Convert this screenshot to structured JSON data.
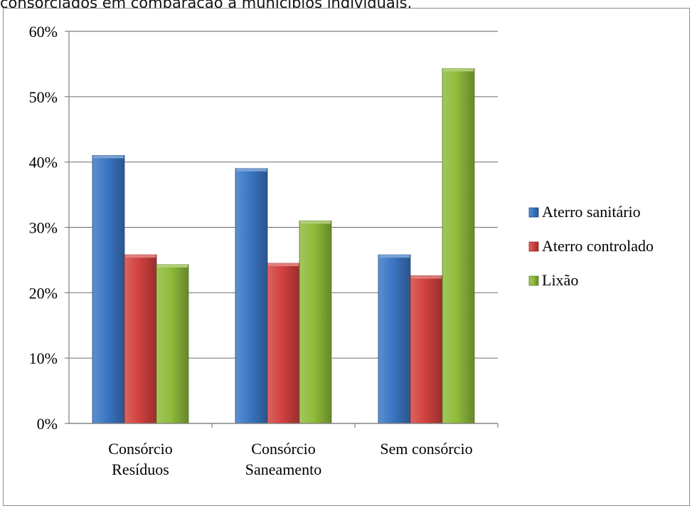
{
  "caption": "consorciados em comparação a municípios individuais.",
  "chart_data": {
    "type": "bar",
    "categories": [
      [
        "Consórcio",
        "Resíduos"
      ],
      [
        "Consórcio",
        "Saneamento"
      ],
      [
        "Sem consórcio"
      ]
    ],
    "series": [
      {
        "name": "Aterro sanitário",
        "values": [
          41,
          39,
          25.8
        ],
        "color": "#3a76c4"
      },
      {
        "name": "Aterro controlado",
        "values": [
          25.8,
          24.5,
          22.6
        ],
        "color": "#d2413f"
      },
      {
        "name": "Lixão",
        "values": [
          24.3,
          31,
          54.3
        ],
        "color": "#8fbb3a"
      }
    ],
    "ylim": [
      0,
      60
    ],
    "yticks": [
      "0%",
      "10%",
      "20%",
      "30%",
      "40%",
      "50%",
      "60%"
    ],
    "grid": true,
    "legend": "right"
  }
}
